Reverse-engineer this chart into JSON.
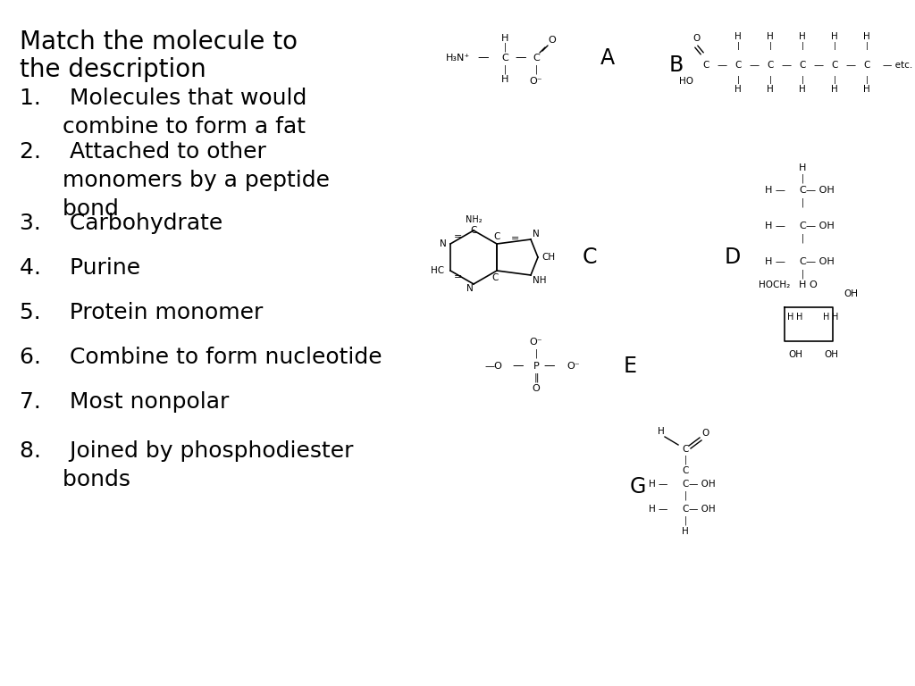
{
  "bg": "#ffffff",
  "header1": "Match the molecule to",
  "header2": "the description",
  "list_items": [
    [
      "1.",
      "Molecules that would",
      "combine to form a fat"
    ],
    [
      "2.",
      "Attached to other",
      "monomers by a peptide",
      "bond"
    ],
    [
      "3.",
      "Carbohydrate"
    ],
    [
      "4.",
      "Purine"
    ],
    [
      "5.",
      "Protein monomer"
    ],
    [
      "6.",
      "Combine to form nucleotide"
    ],
    [
      "7.",
      "Most nonpolar"
    ],
    [
      "8.",
      "Joined by phosphodiester",
      "bonds"
    ]
  ],
  "header_fs": 20,
  "list_fs": 18
}
